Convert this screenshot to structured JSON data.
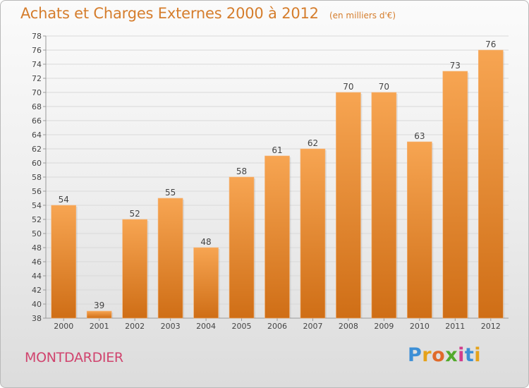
{
  "header": {
    "title": "Achats et Charges Externes 2000 à 2012",
    "subtitle": "(en milliers d'€)"
  },
  "footer": {
    "place": "MONTDARDIER",
    "brand": "Proxiti",
    "brand_letters": [
      {
        "ch": "P",
        "color": "#3c8fd6"
      },
      {
        "ch": "r",
        "color": "#e5a21a"
      },
      {
        "ch": "o",
        "color": "#e06a2a"
      },
      {
        "ch": "x",
        "color": "#52aa2c"
      },
      {
        "ch": "i",
        "color": "#d23d8c"
      },
      {
        "ch": "t",
        "color": "#3c8fd6"
      },
      {
        "ch": "i",
        "color": "#e5a21a"
      }
    ]
  },
  "colors": {
    "accent": "#d57d2c",
    "place": "#d0446e",
    "bar_top": "#f7a552",
    "bar_bottom": "#cf6e16"
  },
  "chart_data": {
    "type": "bar",
    "categories": [
      "2000",
      "2001",
      "2002",
      "2003",
      "2004",
      "2005",
      "2006",
      "2007",
      "2008",
      "2009",
      "2010",
      "2011",
      "2012"
    ],
    "values": [
      54,
      39,
      52,
      55,
      48,
      58,
      61,
      62,
      70,
      70,
      63,
      73,
      76
    ],
    "ylim": [
      38,
      78
    ],
    "yticks": [
      38,
      40,
      42,
      44,
      46,
      48,
      50,
      52,
      54,
      56,
      58,
      60,
      62,
      64,
      66,
      68,
      70,
      72,
      74,
      76,
      78
    ],
    "grid": true,
    "data_labels": true,
    "legend": "none"
  }
}
